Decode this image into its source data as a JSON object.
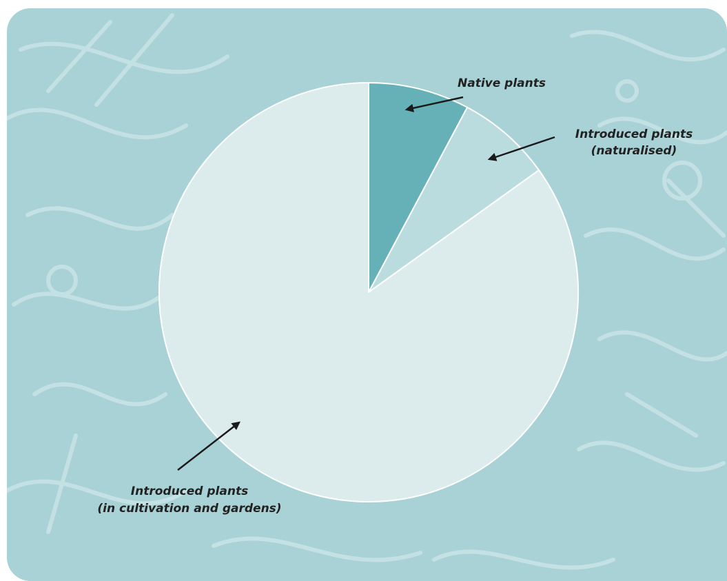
{
  "chart_data": {
    "type": "pie",
    "title": "",
    "start_angle_deg": 0,
    "direction": "clockwise",
    "slices": [
      {
        "label": "Native plants",
        "label_lines": [
          "Native plants"
        ],
        "value": 7.8,
        "color": "#66b1b7"
      },
      {
        "label": "Introduced plants (naturalised)",
        "label_lines": [
          "Introduced plants",
          "(naturalised)"
        ],
        "value": 7.3,
        "color": "#bbdcde"
      },
      {
        "label": "Introduced plants (in cultivation and gardens)",
        "label_lines": [
          "Introduced plants",
          "(in cultivation and gardens)"
        ],
        "value": 84.9,
        "color": "#dcebeb"
      }
    ],
    "legend": "none",
    "labels": "outside-with-arrows"
  },
  "colors": {
    "background": "#a9d2d6",
    "background_pattern": "#c6e3e5",
    "slice_border": "#ffffff",
    "arrow": "#1a1a1a"
  }
}
